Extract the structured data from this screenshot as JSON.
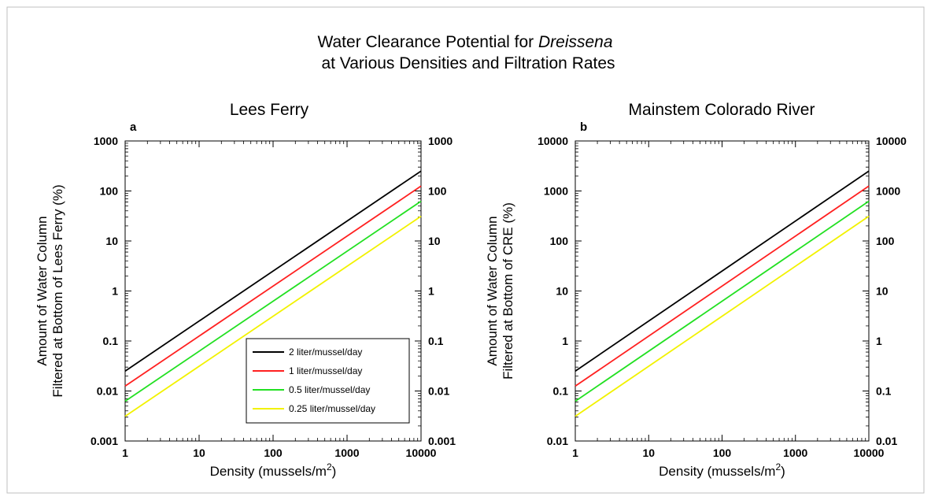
{
  "figure": {
    "title_line1_prefix": "Water Clearance Potential for ",
    "title_line1_italic": "Dreissena",
    "title_line2": "at Various Densities and Filtration Rates"
  },
  "chart_data": [
    {
      "type": "line",
      "panel": "a",
      "title": "Lees Ferry",
      "xlabel_text": "Density (mussels/m",
      "xlabel_sup": "2",
      "xlabel_close": ")",
      "ylabel_line1": "Amount of Water Column",
      "ylabel_line2": "Filtered at Bottom of Lees Ferry (%)",
      "xscale": "log",
      "yscale": "log",
      "xlim": [
        1,
        10000
      ],
      "ylim": [
        0.001,
        1000
      ],
      "xticks": [
        "1",
        "10",
        "100",
        "1000",
        "10000"
      ],
      "yticks": [
        "0.001",
        "0.01",
        "0.1",
        "1",
        "10",
        "100",
        "1000"
      ],
      "right_axis_mirrored": true,
      "legend": "lower-center",
      "x": [
        1,
        10000
      ],
      "series": [
        {
          "name": "2 liter/mussel/day",
          "color": "#000000",
          "y": [
            0.025,
            250
          ]
        },
        {
          "name": "1 liter/mussel/day",
          "color": "#ff2020",
          "y": [
            0.0125,
            125
          ]
        },
        {
          "name": "0.5 liter/mussel/day",
          "color": "#22e022",
          "y": [
            0.00625,
            62.5
          ]
        },
        {
          "name": "0.25 liter/mussel/day",
          "color": "#f2f200",
          "y": [
            0.003125,
            31.25
          ]
        }
      ]
    },
    {
      "type": "line",
      "panel": "b",
      "title": "Mainstem Colorado River",
      "xlabel_text": "Density (mussels/m",
      "xlabel_sup": "2",
      "xlabel_close": ")",
      "ylabel_line1": "Amount of Water Column",
      "ylabel_line2": "Filtered at Bottom of CRE (%)",
      "xscale": "log",
      "yscale": "log",
      "xlim": [
        1,
        10000
      ],
      "ylim": [
        0.01,
        10000
      ],
      "xticks": [
        "1",
        "10",
        "100",
        "1000",
        "10000"
      ],
      "yticks": [
        "0.01",
        "0.1",
        "1",
        "10",
        "100",
        "1000",
        "10000"
      ],
      "right_axis_mirrored": true,
      "x": [
        1,
        10000
      ],
      "series": [
        {
          "name": "2 liter/mussel/day",
          "color": "#000000",
          "y": [
            0.25,
            2500
          ]
        },
        {
          "name": "1 liter/mussel/day",
          "color": "#ff2020",
          "y": [
            0.125,
            1250
          ]
        },
        {
          "name": "0.5 liter/mussel/day",
          "color": "#22e022",
          "y": [
            0.0625,
            625
          ]
        },
        {
          "name": "0.25 liter/mussel/day",
          "color": "#f2f200",
          "y": [
            0.03125,
            312.5
          ]
        }
      ]
    }
  ]
}
